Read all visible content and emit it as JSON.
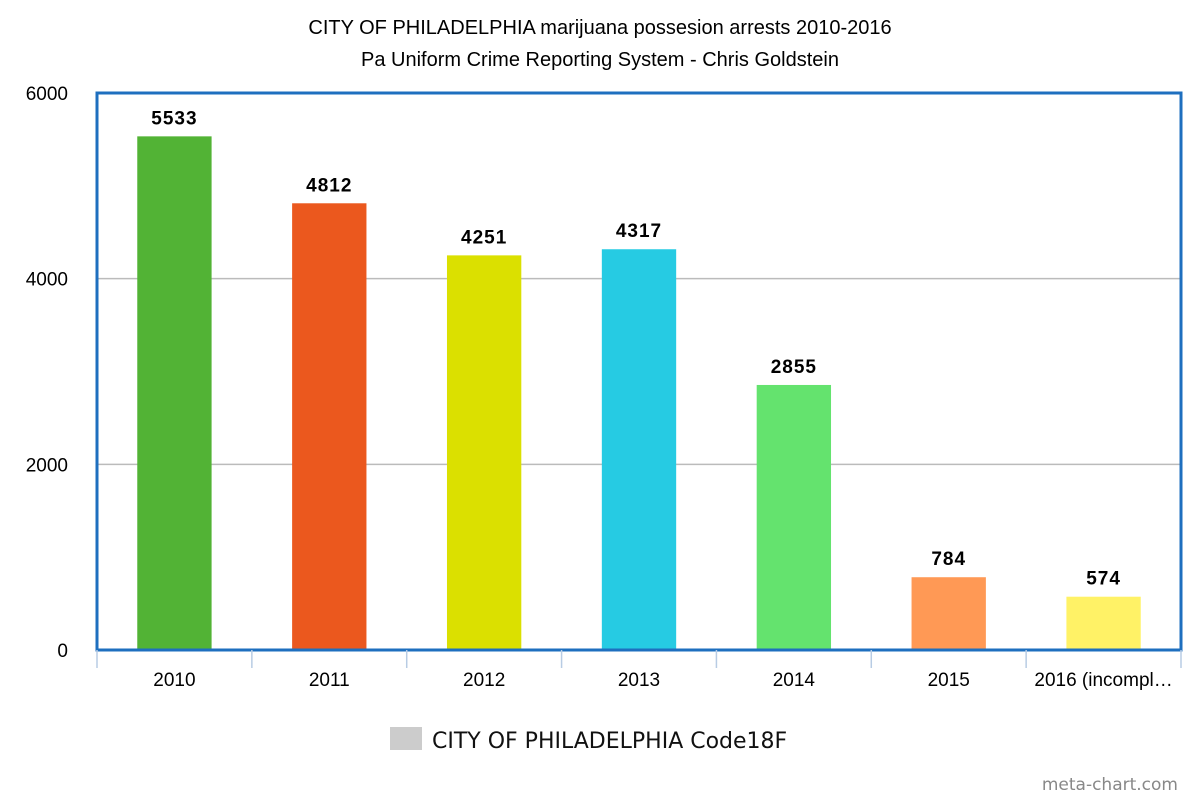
{
  "chart_data": {
    "type": "bar",
    "title": "CITY OF PHILADELPHIA marijuana possesion arrests 2010-2016",
    "subtitle": "Pa Uniform Crime Reporting System - Chris Goldstein",
    "categories": [
      "2010",
      "2011",
      "2012",
      "2013",
      "2014",
      "2015",
      "2016 (incompl…"
    ],
    "series": [
      {
        "name": "CITY OF PHILADELPHIA Code18F",
        "values": [
          5533,
          4812,
          4251,
          4317,
          2855,
          784,
          574
        ],
        "labels": [
          "5533",
          "4812",
          "4251",
          "4317",
          "2855",
          "784",
          "574"
        ]
      }
    ],
    "bar_colors": [
      "#52b335",
      "#eb581e",
      "#dbe000",
      "#26cbe3",
      "#64e36e",
      "#ff9955",
      "#fff266"
    ],
    "ylim": [
      0,
      6000
    ],
    "yticks": [
      0,
      2000,
      4000,
      6000
    ],
    "ytick_labels": [
      "0",
      "2000",
      "4000",
      "6000"
    ],
    "grid": true,
    "legend_position": "bottom",
    "legend_color": "#cccccc",
    "frame_color": "#1e6fbf",
    "grid_color": "#bbbbbb",
    "xlabel": "",
    "ylabel": ""
  },
  "watermark": "meta-chart.com"
}
